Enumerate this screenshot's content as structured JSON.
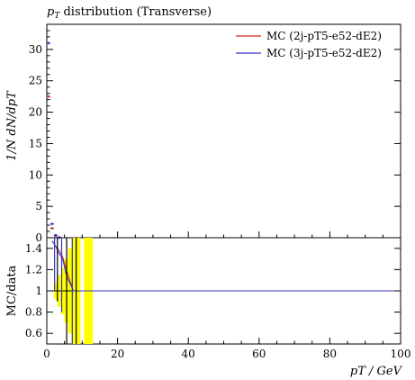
{
  "title": "pT distribution (Transverse)",
  "title_parts": {
    "var": "p",
    "sub": "T",
    "rest": " distribution (Transverse)"
  },
  "legend": {
    "items": [
      {
        "label": "MC (2j-pT5-e52-dE2)",
        "color": "#d62728"
      },
      {
        "label": "MC (3j-pT5-e52-dE2)",
        "color": "#3030c8"
      }
    ]
  },
  "ylabel_top": "1/N dN/dpT",
  "ylabel_bottom": "MC/data",
  "xlabel": "pT / GeV",
  "colors": {
    "band": "#ffff00",
    "ref": "#000000",
    "mc1": "#d62728",
    "mc2": "#3030c8"
  },
  "chart_data": [
    {
      "type": "scatter",
      "title": "pT distribution (Transverse)",
      "ylabel": "1/N dN/dpT",
      "xlim": [
        0,
        100
      ],
      "ylim": [
        0,
        34
      ],
      "yticks": [
        0,
        5,
        10,
        15,
        20,
        25,
        30
      ],
      "legend_position": "top-right",
      "series": [
        {
          "name": "MC (2j-pT5-e52-dE2)",
          "x": [
            0.5,
            1.5,
            2.5,
            3.5
          ],
          "y": [
            22.5,
            1.5,
            0.3,
            0.05
          ]
        },
        {
          "name": "MC (3j-pT5-e52-dE2)",
          "x": [
            0.5,
            1.5,
            2.5,
            3.5
          ],
          "y": [
            31.0,
            2.2,
            0.4,
            0.05
          ]
        }
      ]
    },
    {
      "type": "line",
      "ylabel": "MC/data",
      "xlabel": "pT / GeV",
      "xlim": [
        0,
        100
      ],
      "ylim": [
        0.5,
        1.5
      ],
      "yticks": [
        0.6,
        0.8,
        1,
        1.2,
        1.4
      ],
      "xticks": [
        0,
        20,
        40,
        60,
        80,
        100
      ],
      "reference": 1,
      "band": [
        {
          "x0": 2.0,
          "x1": 3.0,
          "lo": 0.92,
          "hi": 1.08
        },
        {
          "x0": 3.0,
          "x1": 4.0,
          "lo": 0.85,
          "hi": 1.15
        },
        {
          "x0": 4.0,
          "x1": 5.0,
          "lo": 0.78,
          "hi": 1.22
        },
        {
          "x0": 5.0,
          "x1": 6.0,
          "lo": 0.7,
          "hi": 1.3
        },
        {
          "x0": 6.0,
          "x1": 7.0,
          "lo": 0.6,
          "hi": 1.4
        },
        {
          "x0": 7.0,
          "x1": 8.0,
          "lo": 0.5,
          "hi": 1.5
        },
        {
          "x0": 8.0,
          "x1": 9.5,
          "lo": 0.5,
          "hi": 1.5
        },
        {
          "x0": 10.5,
          "x1": 13.0,
          "lo": 0.5,
          "hi": 1.5
        }
      ],
      "series": [
        {
          "name": "MC (2j-pT5-e52-dE2)",
          "x": [
            1.5,
            2.5,
            3.5,
            4.5,
            5.5,
            7.5,
            15,
            100
          ],
          "y": [
            1.47,
            1.42,
            1.38,
            1.32,
            1.2,
            1.0,
            1.0,
            1.0
          ]
        },
        {
          "name": "MC (3j-pT5-e52-dE2)",
          "x": [
            1.5,
            2.5,
            3.5,
            4.5,
            5.5,
            7.5,
            15,
            100
          ],
          "y": [
            1.47,
            1.42,
            1.35,
            1.3,
            1.15,
            1.0,
            1.0,
            1.0
          ]
        }
      ]
    }
  ]
}
